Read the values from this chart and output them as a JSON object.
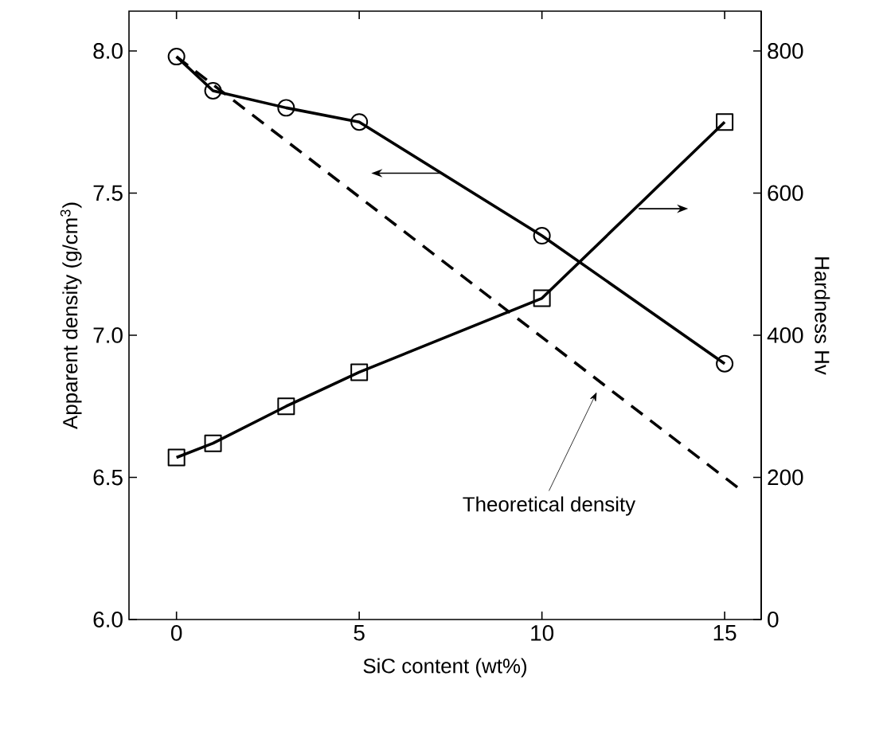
{
  "chart_data": {
    "type": "line",
    "xlabel": "SiC content (wt%)",
    "ylabel": "Apparent density (g/cm$^{3}$)",
    "y2label": "Hardness Hv",
    "xlim": [
      -1.3,
      16
    ],
    "xticks": [
      0,
      5,
      10,
      15
    ],
    "ylim": [
      6,
      8.14
    ],
    "yticks": [
      {
        "value": 6,
        "label": "6.0"
      },
      {
        "value": 6.5,
        "label": "6.5"
      },
      {
        "value": 7,
        "label": "7.0"
      },
      {
        "value": 7.5,
        "label": "7.5"
      },
      {
        "value": 8,
        "label": "8.0"
      }
    ],
    "y2lim": [
      0,
      856
    ],
    "y2ticks": [
      0,
      200,
      400,
      600,
      800
    ],
    "series": [
      {
        "x": [
          0,
          1,
          3,
          5,
          10,
          15
        ],
        "values": [
          7.98,
          7.86,
          7.8,
          7.75,
          7.35,
          6.9
        ],
        "color": "#000000",
        "marker": "circle",
        "line_style": "solid"
      },
      {
        "x": [
          0,
          1,
          3,
          5,
          10,
          15
        ],
        "values": [
          228,
          248,
          300,
          348,
          452,
          700
        ],
        "color": "#000000",
        "marker": "square",
        "line_style": "solid",
        "axis": "y2"
      },
      {
        "x": [
          0,
          15.4
        ],
        "values": [
          7.98,
          6.46
        ],
        "color": "#000000",
        "marker": "none",
        "line_style": "dashed"
      }
    ],
    "annotations": [
      "Theoretical density"
    ],
    "grid": false
  }
}
